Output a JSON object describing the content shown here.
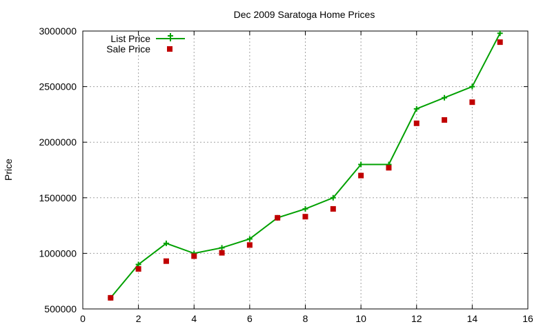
{
  "chart_data": {
    "type": "line",
    "title": "Dec 2009 Saratoga Home Prices",
    "xlabel": "",
    "ylabel": "Price",
    "xlim": [
      0,
      16
    ],
    "ylim": [
      500000,
      3000000
    ],
    "x_ticks": [
      "0",
      "2",
      "4",
      "6",
      "8",
      "10",
      "12",
      "14",
      "16"
    ],
    "y_ticks": [
      "500000",
      "1000000",
      "1500000",
      "2000000",
      "2500000",
      "3000000"
    ],
    "grid": true,
    "legend_position": "top-left",
    "series": [
      {
        "name": "List Price",
        "style": "line-with-plus-markers",
        "color": "#00a000",
        "x": [
          1,
          2,
          3,
          4,
          5,
          6,
          7,
          8,
          9,
          10,
          11,
          12,
          13,
          14,
          15
        ],
        "y": [
          600000,
          900000,
          1090000,
          1000000,
          1050000,
          1130000,
          1320000,
          1400000,
          1500000,
          1800000,
          1800000,
          2300000,
          2400000,
          2500000,
          2980000
        ]
      },
      {
        "name": "Sale Price",
        "style": "square-markers",
        "color": "#c00000",
        "x": [
          1,
          2,
          3,
          4,
          5,
          6,
          7,
          8,
          9,
          10,
          11,
          12,
          13,
          14,
          15
        ],
        "y": [
          600000,
          860000,
          930000,
          975000,
          1005000,
          1075000,
          1320000,
          1330000,
          1400000,
          1700000,
          1770000,
          2170000,
          2200000,
          2360000,
          2900000
        ]
      }
    ]
  }
}
